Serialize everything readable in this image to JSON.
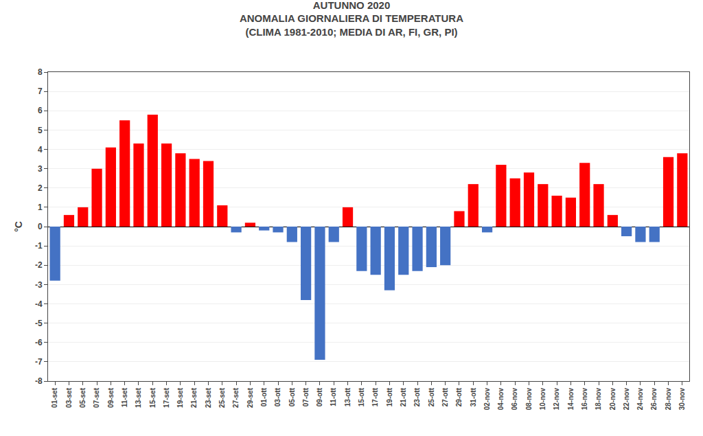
{
  "chart_data": {
    "type": "bar",
    "title": "AUTUNNO 2020\nANOMALIA GIORNALIERA DI TEMPERATURA\n(CLIMA 1981-2010; MEDIA DI AR, FI, GR, PI)",
    "ylabel": "°C",
    "categories": [
      "01-set",
      "03-set",
      "05-set",
      "07-set",
      "09-set",
      "11-set",
      "13-set",
      "15-set",
      "17-set",
      "19-set",
      "21-set",
      "23-set",
      "25-set",
      "27-set",
      "29-set",
      "01-ott",
      "03-ott",
      "05-ott",
      "07-ott",
      "09-ott",
      "11-ott",
      "13-ott",
      "15-ott",
      "17-ott",
      "19-ott",
      "21-ott",
      "23-ott",
      "25-ott",
      "27-ott",
      "29-ott",
      "31-ott",
      "02-nov",
      "04-nov",
      "06-nov",
      "08-nov",
      "10-nov",
      "12-nov",
      "14-nov",
      "16-nov",
      "18-nov",
      "20-nov",
      "22-nov",
      "24-nov",
      "26-nov",
      "28-nov",
      "30-nov"
    ],
    "values": [
      -2.8,
      0.6,
      1.0,
      3.0,
      4.1,
      5.5,
      4.3,
      5.8,
      4.3,
      3.8,
      3.5,
      3.4,
      1.1,
      -0.3,
      0.2,
      -0.2,
      -0.3,
      -0.8,
      -3.8,
      -6.9,
      -0.8,
      1.0,
      -2.3,
      -2.5,
      -3.3,
      -2.5,
      -2.3,
      -2.1,
      -2.0,
      0.8,
      2.2,
      -0.3,
      3.2,
      2.5,
      2.8,
      2.2,
      1.6,
      1.5,
      3.3,
      2.2,
      0.6,
      -0.5,
      -0.8,
      -0.8,
      3.6,
      3.8
    ],
    "colors": [
      "#4472C4",
      "#FF0000",
      "#FF0000",
      "#FF0000",
      "#FF0000",
      "#FF0000",
      "#FF0000",
      "#FF0000",
      "#FF0000",
      "#FF0000",
      "#FF0000",
      "#FF0000",
      "#FF0000",
      "#4472C4",
      "#FF0000",
      "#4472C4",
      "#4472C4",
      "#4472C4",
      "#4472C4",
      "#4472C4",
      "#4472C4",
      "#FF0000",
      "#4472C4",
      "#4472C4",
      "#4472C4",
      "#4472C4",
      "#4472C4",
      "#4472C4",
      "#4472C4",
      "#FF0000",
      "#FF0000",
      "#4472C4",
      "#FF0000",
      "#FF0000",
      "#FF0000",
      "#FF0000",
      "#FF0000",
      "#FF0000",
      "#FF0000",
      "#FF0000",
      "#FF0000",
      "#4472C4",
      "#4472C4",
      "#4472C4",
      "#FF0000",
      "#FF0000"
    ],
    "ylim": [
      -8,
      8
    ],
    "yticks": [
      -8,
      -7,
      -6,
      -5,
      -4,
      -3,
      -2,
      -1,
      0,
      1,
      2,
      3,
      4,
      5,
      6,
      7,
      8
    ],
    "grid": true
  }
}
